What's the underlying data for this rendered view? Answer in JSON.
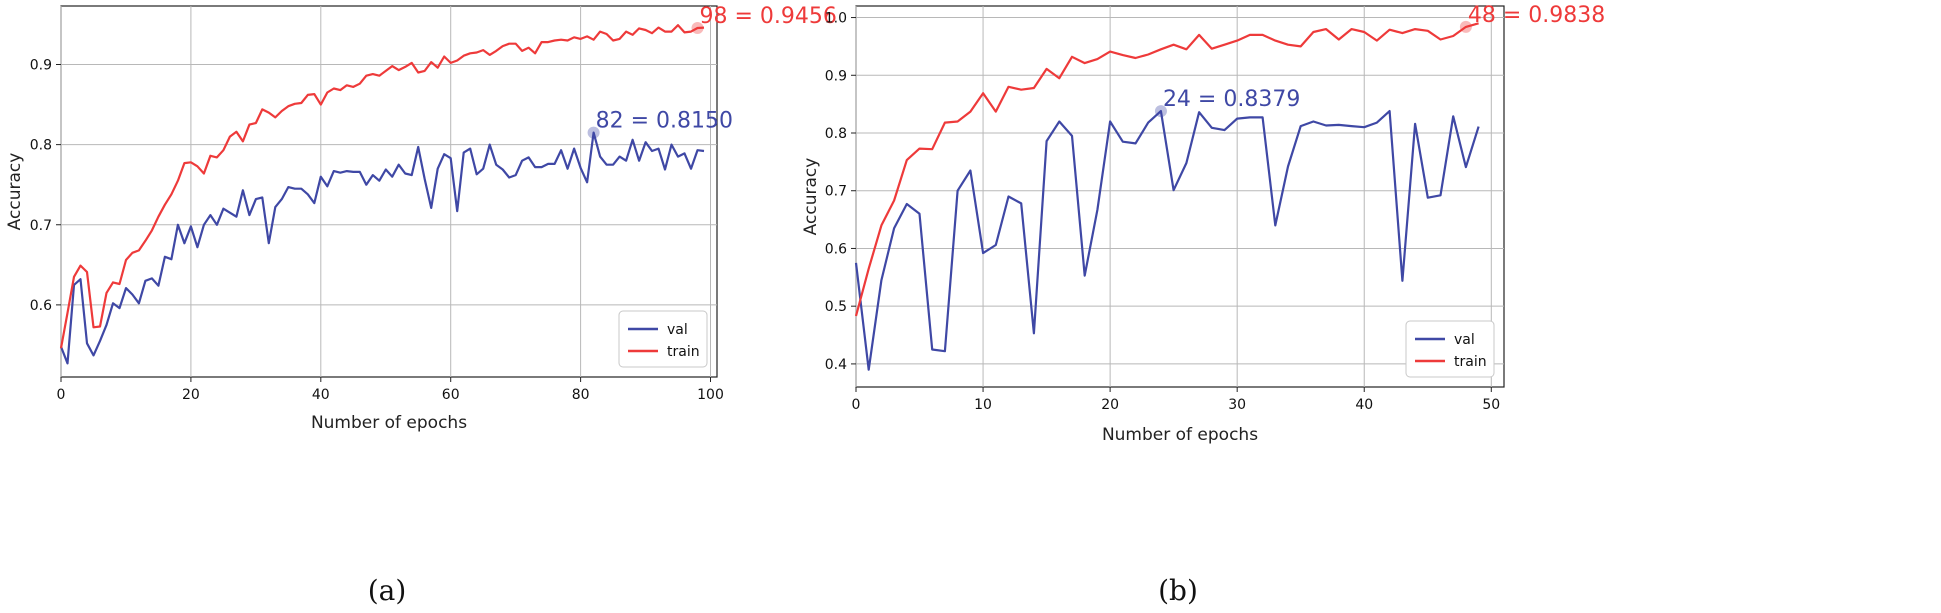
{
  "colors": {
    "val": "#3f48a5",
    "train": "#ee3a3a"
  },
  "chart_data": [
    {
      "type": "line",
      "caption": "(a)",
      "xlabel": "Number of epochs",
      "ylabel": "Accuracy",
      "xlim": [
        0,
        101
      ],
      "ylim": [
        0.51,
        0.973
      ],
      "xticks": [
        0,
        20,
        40,
        60,
        80,
        100
      ],
      "yticks": [
        0.6,
        0.7,
        0.8,
        0.9
      ],
      "grid": true,
      "legend_position": "lower-right",
      "series": [
        {
          "name": "val",
          "color": "#3f48a5",
          "values": [
            0.548,
            0.527,
            0.625,
            0.632,
            0.552,
            0.537,
            0.555,
            0.575,
            0.602,
            0.596,
            0.621,
            0.613,
            0.602,
            0.63,
            0.633,
            0.624,
            0.66,
            0.657,
            0.7,
            0.677,
            0.698,
            0.672,
            0.7,
            0.712,
            0.7,
            0.72,
            0.715,
            0.71,
            0.743,
            0.712,
            0.732,
            0.734,
            0.677,
            0.722,
            0.732,
            0.747,
            0.745,
            0.745,
            0.738,
            0.727,
            0.76,
            0.748,
            0.767,
            0.765,
            0.767,
            0.766,
            0.766,
            0.75,
            0.762,
            0.755,
            0.769,
            0.76,
            0.775,
            0.764,
            0.762,
            0.797,
            0.757,
            0.721,
            0.77,
            0.788,
            0.783,
            0.717,
            0.79,
            0.795,
            0.763,
            0.77,
            0.8,
            0.775,
            0.769,
            0.759,
            0.762,
            0.78,
            0.784,
            0.772,
            0.772,
            0.776,
            0.776,
            0.793,
            0.77,
            0.795,
            0.771,
            0.753,
            0.815,
            0.785,
            0.775,
            0.775,
            0.785,
            0.78,
            0.806,
            0.78,
            0.803,
            0.792,
            0.795,
            0.769,
            0.8,
            0.785,
            0.789,
            0.77,
            0.793,
            0.792
          ]
        },
        {
          "name": "train",
          "color": "#ee3a3a",
          "values": [
            0.546,
            0.59,
            0.635,
            0.649,
            0.641,
            0.572,
            0.573,
            0.615,
            0.628,
            0.626,
            0.656,
            0.665,
            0.668,
            0.68,
            0.693,
            0.71,
            0.725,
            0.738,
            0.755,
            0.777,
            0.778,
            0.773,
            0.764,
            0.786,
            0.784,
            0.793,
            0.81,
            0.816,
            0.804,
            0.825,
            0.827,
            0.844,
            0.84,
            0.834,
            0.842,
            0.848,
            0.851,
            0.852,
            0.862,
            0.863,
            0.85,
            0.865,
            0.87,
            0.868,
            0.874,
            0.872,
            0.876,
            0.886,
            0.888,
            0.886,
            0.892,
            0.898,
            0.893,
            0.897,
            0.902,
            0.89,
            0.892,
            0.903,
            0.896,
            0.91,
            0.902,
            0.905,
            0.911,
            0.914,
            0.915,
            0.918,
            0.912,
            0.917,
            0.923,
            0.926,
            0.926,
            0.917,
            0.921,
            0.914,
            0.928,
            0.928,
            0.93,
            0.931,
            0.93,
            0.934,
            0.932,
            0.935,
            0.931,
            0.941,
            0.938,
            0.93,
            0.932,
            0.941,
            0.937,
            0.945,
            0.943,
            0.939,
            0.946,
            0.941,
            0.941,
            0.949,
            0.94,
            0.941,
            0.9456,
            0.946
          ]
        }
      ],
      "annotations": [
        {
          "series": "val",
          "x": 82,
          "y": 0.815,
          "text": "82 = 0.8150"
        },
        {
          "series": "train",
          "x": 98,
          "y": 0.9456,
          "text": "98 = 0.9456"
        }
      ]
    },
    {
      "type": "line",
      "caption": "(b)",
      "xlabel": "Number of epochs",
      "ylabel": "Accuracy",
      "xlim": [
        0,
        51
      ],
      "ylim": [
        0.36,
        1.02
      ],
      "xticks": [
        0,
        10,
        20,
        30,
        40,
        50
      ],
      "yticks": [
        0.4,
        0.5,
        0.6,
        0.7,
        0.8,
        0.9,
        1.0
      ],
      "grid": true,
      "legend_position": "lower-right",
      "series": [
        {
          "name": "val",
          "color": "#3f48a5",
          "values": [
            0.575,
            0.39,
            0.545,
            0.635,
            0.677,
            0.66,
            0.425,
            0.422,
            0.7,
            0.735,
            0.592,
            0.606,
            0.69,
            0.678,
            0.453,
            0.786,
            0.82,
            0.795,
            0.553,
            0.667,
            0.82,
            0.785,
            0.782,
            0.818,
            0.8379,
            0.701,
            0.748,
            0.836,
            0.809,
            0.805,
            0.825,
            0.827,
            0.827,
            0.64,
            0.742,
            0.812,
            0.82,
            0.813,
            0.814,
            0.812,
            0.81,
            0.818,
            0.838,
            0.544,
            0.816,
            0.688,
            0.692,
            0.829,
            0.741,
            0.811
          ]
        },
        {
          "name": "train",
          "color": "#ee3a3a",
          "values": [
            0.483,
            0.565,
            0.64,
            0.683,
            0.753,
            0.773,
            0.772,
            0.818,
            0.82,
            0.837,
            0.869,
            0.837,
            0.88,
            0.875,
            0.878,
            0.911,
            0.895,
            0.932,
            0.921,
            0.928,
            0.941,
            0.935,
            0.93,
            0.936,
            0.945,
            0.953,
            0.945,
            0.97,
            0.946,
            0.953,
            0.96,
            0.97,
            0.97,
            0.96,
            0.953,
            0.95,
            0.975,
            0.98,
            0.962,
            0.98,
            0.975,
            0.96,
            0.979,
            0.973,
            0.98,
            0.977,
            0.962,
            0.968,
            0.9838,
            0.99
          ]
        }
      ],
      "annotations": [
        {
          "series": "val",
          "x": 24,
          "y": 0.8379,
          "text": "24 = 0.8379"
        },
        {
          "series": "train",
          "x": 48,
          "y": 0.9838,
          "text": "48 = 0.9838"
        }
      ]
    }
  ]
}
